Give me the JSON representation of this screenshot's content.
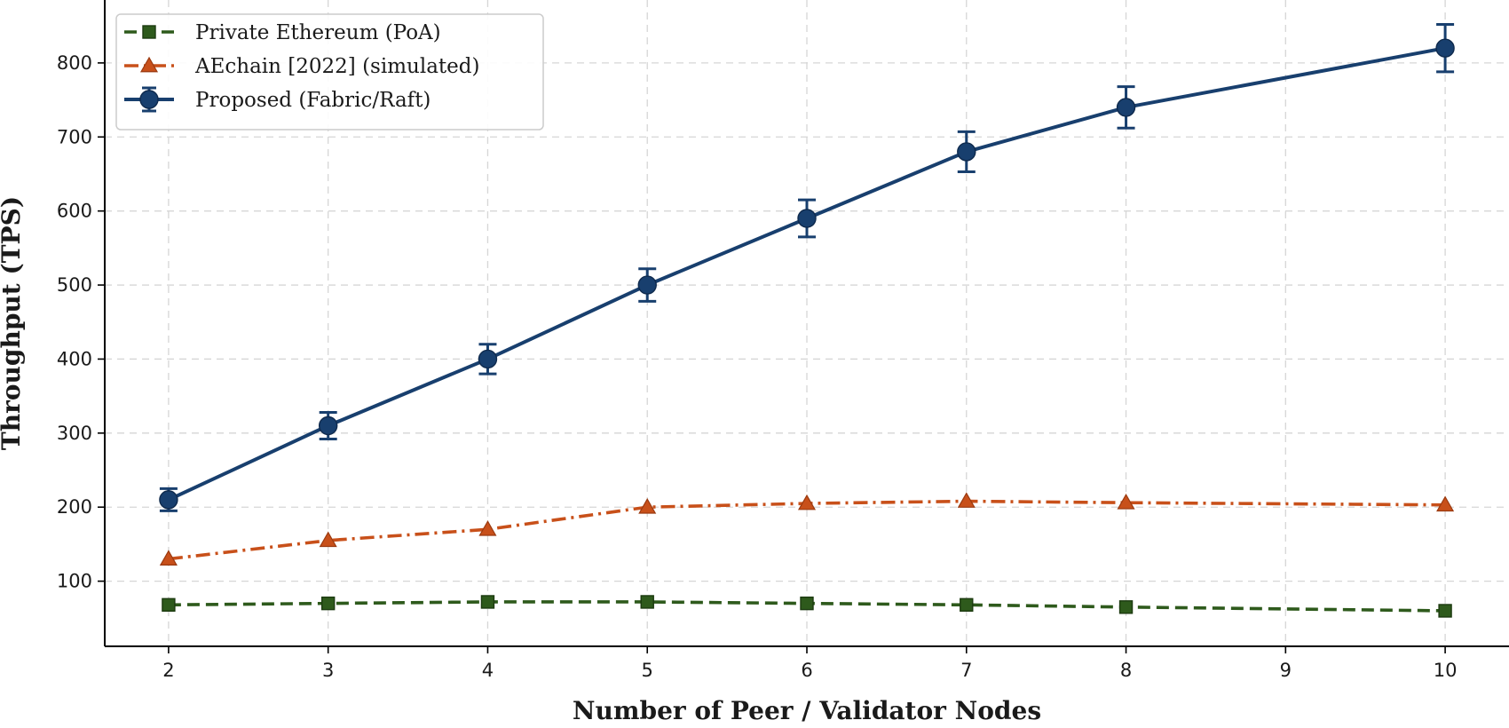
{
  "chart_data": {
    "type": "line",
    "xlabel": "Number of Peer / Validator Nodes",
    "ylabel": "Throughput (TPS)",
    "x_ticks": [
      2,
      3,
      4,
      5,
      6,
      7,
      8,
      9,
      10
    ],
    "y_ticks": [
      100,
      200,
      300,
      400,
      500,
      600,
      700,
      800
    ],
    "xlim": [
      1.6,
      10.4
    ],
    "ylim": [
      12,
      885
    ],
    "grid": true,
    "legend_position": "top-left",
    "series": [
      {
        "name": "Private Ethereum (PoA)",
        "color": "#2e5a1c",
        "line_style": "dashed",
        "marker": "square",
        "x": [
          2,
          3,
          4,
          5,
          6,
          7,
          8,
          10
        ],
        "y": [
          68,
          70,
          72,
          72,
          70,
          68,
          65,
          60
        ]
      },
      {
        "name": "AEchain [2022] (simulated)",
        "color": "#c8501a",
        "line_style": "dashdot",
        "marker": "triangle",
        "x": [
          2,
          3,
          4,
          5,
          6,
          7,
          8,
          10
        ],
        "y": [
          130,
          155,
          170,
          200,
          205,
          208,
          206,
          203
        ]
      },
      {
        "name": "Proposed (Fabric/Raft)",
        "color": "#183f6e",
        "line_style": "solid",
        "marker": "circle",
        "x": [
          2,
          3,
          4,
          5,
          6,
          7,
          8,
          10
        ],
        "y": [
          210,
          310,
          400,
          500,
          590,
          680,
          740,
          820
        ],
        "error": [
          15,
          18,
          20,
          22,
          25,
          27,
          28,
          32
        ]
      }
    ]
  }
}
